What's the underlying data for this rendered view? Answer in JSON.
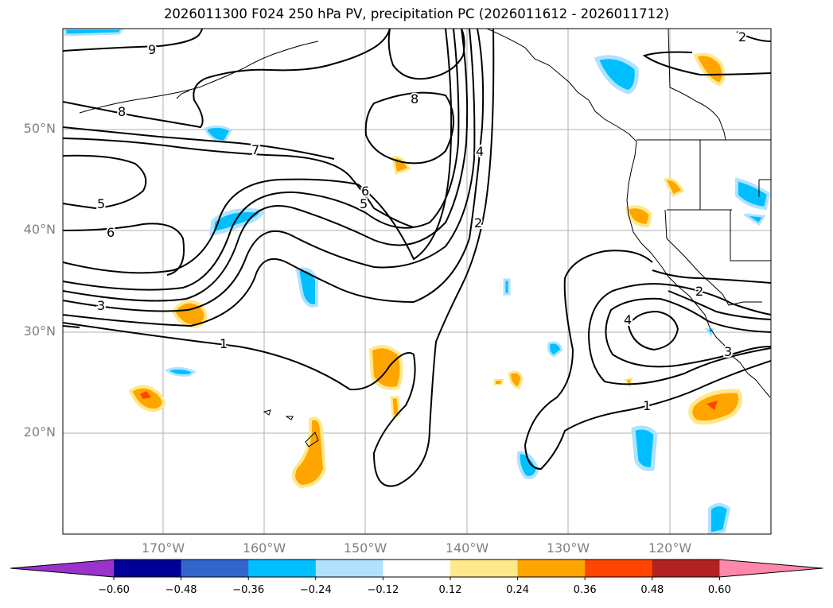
{
  "title": "2026011300 F024 250 hPa PV, precipitation PC (2026011612 - 2026011712)",
  "map": {
    "lat_labels": [
      "50°N",
      "40°N",
      "30°N",
      "20°N"
    ],
    "lon_labels": [
      "170°W",
      "160°W",
      "150°W",
      "140°W",
      "130°W",
      "120°W"
    ],
    "contour_labels": [
      "9",
      "8",
      "8",
      "7",
      "6",
      "5",
      "5",
      "6",
      "4",
      "2",
      "3",
      "1",
      "2",
      "4",
      "3",
      "1",
      "2"
    ],
    "colors": {
      "contour": "#000000",
      "grid": "#b0b0b0",
      "coast": "#000000"
    }
  },
  "colorbar": {
    "tick_labels": [
      "−0.60",
      "−0.48",
      "−0.36",
      "−0.24",
      "−0.12",
      "0.12",
      "0.24",
      "0.36",
      "0.48",
      "0.60"
    ],
    "colors": [
      "#9933cc",
      "#000099",
      "#3366cc",
      "#00bfff",
      "#b0e2ff",
      "#ffffff",
      "#ffe88a",
      "#ffa500",
      "#ff4500",
      "#b22222",
      "#ff88aa"
    ]
  }
}
